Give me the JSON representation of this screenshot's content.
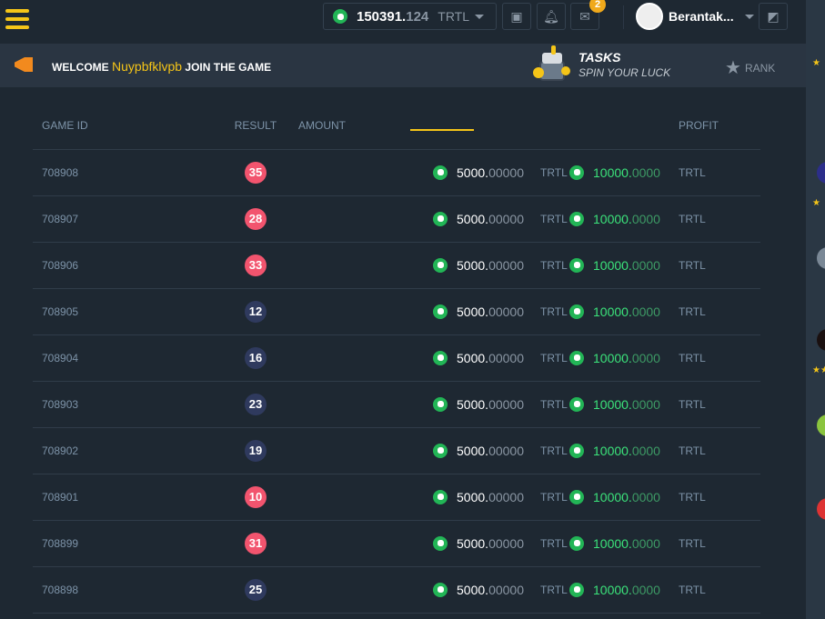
{
  "header": {
    "balance_int": "150391.",
    "balance_dec": "124",
    "currency": "TRTL",
    "notifications_count": "2",
    "username": "Berantak..."
  },
  "banner": {
    "welcome": "WELCOME",
    "name": "Nuypbfklvpb",
    "join": "JOIN THE GAME",
    "tasks_title": "TASKS",
    "tasks_sub": "SPIN YOUR LUCK",
    "rank": "RANK"
  },
  "colors": {
    "red": "#f2546e",
    "dark": "#2f3a5e",
    "accent": "#f5c518",
    "green": "#22b556"
  },
  "table": {
    "headers": [
      "GAME ID",
      "RESULT",
      "AMOUNT",
      "PROFIT"
    ],
    "rows": [
      {
        "id": "708908",
        "result": "35",
        "color": "red",
        "amount_int": "5000.",
        "amount_dec": "00000",
        "amount_cur": "TRTL",
        "profit_int": "10000.",
        "profit_dec": "0000",
        "profit_cur": "TRTL"
      },
      {
        "id": "708907",
        "result": "28",
        "color": "red",
        "amount_int": "5000.",
        "amount_dec": "00000",
        "amount_cur": "TRTL",
        "profit_int": "10000.",
        "profit_dec": "0000",
        "profit_cur": "TRTL"
      },
      {
        "id": "708906",
        "result": "33",
        "color": "red",
        "amount_int": "5000.",
        "amount_dec": "00000",
        "amount_cur": "TRTL",
        "profit_int": "10000.",
        "profit_dec": "0000",
        "profit_cur": "TRTL"
      },
      {
        "id": "708905",
        "result": "12",
        "color": "dark",
        "amount_int": "5000.",
        "amount_dec": "00000",
        "amount_cur": "TRTL",
        "profit_int": "10000.",
        "profit_dec": "0000",
        "profit_cur": "TRTL"
      },
      {
        "id": "708904",
        "result": "16",
        "color": "dark",
        "amount_int": "5000.",
        "amount_dec": "00000",
        "amount_cur": "TRTL",
        "profit_int": "10000.",
        "profit_dec": "0000",
        "profit_cur": "TRTL"
      },
      {
        "id": "708903",
        "result": "23",
        "color": "dark",
        "amount_int": "5000.",
        "amount_dec": "00000",
        "amount_cur": "TRTL",
        "profit_int": "10000.",
        "profit_dec": "0000",
        "profit_cur": "TRTL"
      },
      {
        "id": "708902",
        "result": "19",
        "color": "dark",
        "amount_int": "5000.",
        "amount_dec": "00000",
        "amount_cur": "TRTL",
        "profit_int": "10000.",
        "profit_dec": "0000",
        "profit_cur": "TRTL"
      },
      {
        "id": "708901",
        "result": "10",
        "color": "red",
        "amount_int": "5000.",
        "amount_dec": "00000",
        "amount_cur": "TRTL",
        "profit_int": "10000.",
        "profit_dec": "0000",
        "profit_cur": "TRTL"
      },
      {
        "id": "708899",
        "result": "31",
        "color": "red",
        "amount_int": "5000.",
        "amount_dec": "00000",
        "amount_cur": "TRTL",
        "profit_int": "10000.",
        "profit_dec": "0000",
        "profit_cur": "TRTL"
      },
      {
        "id": "708898",
        "result": "25",
        "color": "dark",
        "amount_int": "5000.",
        "amount_dec": "00000",
        "amount_cur": "TRTL",
        "profit_int": "10000.",
        "profit_dec": "0000",
        "profit_cur": "TRTL"
      }
    ]
  }
}
